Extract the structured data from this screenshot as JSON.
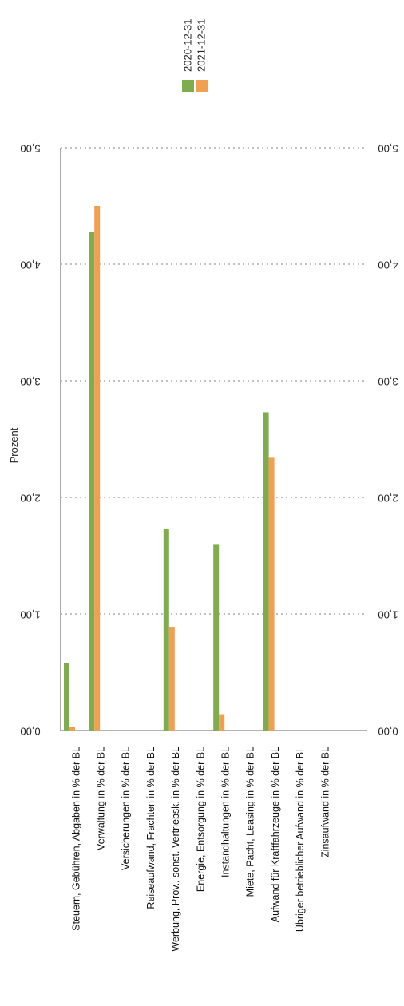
{
  "chart_data": {
    "type": "bar",
    "orientation": "horizontal, rotated scan",
    "ylabel": "Prozent",
    "yticks": [
      "0,00",
      "1,00",
      "2,00",
      "3,00",
      "4,00",
      "5,00"
    ],
    "ylim": [
      0,
      5
    ],
    "grid": true,
    "legend_position": "top",
    "categories": [
      "Steuern, Gebühren, Abgaben in % der BL",
      "Verwaltung in % der BL",
      "Versicherungen in % der BL",
      "Reiseaufwand, Frachten in % der BL",
      "Werbung, Prov., sonst. Vertriebsk. in % der BL",
      "Energie, Entsorgung in % der BL",
      "Instandhaltungen in % der BL",
      "Miete, Pacht, Leasing in % der BL",
      "Aufwand für Kraftfahrzeuge in % der BL",
      "Übriger betrieblicher Aufwand in % der BL",
      "Zinsaufwand in % der BL"
    ],
    "series": [
      {
        "name": "2020-12-31",
        "color": "#7fac4f",
        "values": [
          0.58,
          4.28,
          0,
          0,
          1.73,
          0,
          1.6,
          0,
          2.73,
          0,
          0
        ]
      },
      {
        "name": "2021-12-31",
        "color": "#f0a050",
        "values": [
          0.03,
          4.5,
          0,
          0,
          0.89,
          0,
          0.14,
          0,
          2.34,
          0,
          0
        ]
      }
    ]
  }
}
